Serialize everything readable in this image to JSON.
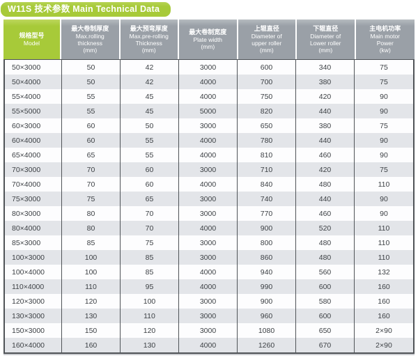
{
  "colors": {
    "accent_green": "#a7ca39",
    "header_gray": "#9aa0a7",
    "row_alt_gray": "#e3e5e9",
    "row_white": "#fdfdfe",
    "border_dark": "#4f5357",
    "header_text": "#ffffff",
    "cell_text": "#3d4145"
  },
  "chart_data": {
    "type": "table",
    "title": "W11S 技术参数  Main Technical Data",
    "columns": [
      {
        "cn": "规格型号",
        "en": [
          "Model"
        ]
      },
      {
        "cn": "最大卷制厚度",
        "en": [
          "Max.rolling",
          "thickness",
          "(mm)"
        ]
      },
      {
        "cn": "最大预弯厚度",
        "en": [
          "Max.pre-rolling",
          "Thickness",
          "(mm)"
        ]
      },
      {
        "cn": "最大卷制宽度",
        "en": [
          "Plate width",
          "(mm)"
        ]
      },
      {
        "cn": "上辊直径",
        "en": [
          "Diameter of",
          "upper roller",
          "(mm)"
        ]
      },
      {
        "cn": "下辊直径",
        "en": [
          "Diameter of",
          "Lower roller",
          "(mm)"
        ]
      },
      {
        "cn": "主电机功率",
        "en": [
          "Main motor",
          "Power",
          "(kw)"
        ]
      }
    ],
    "rows": [
      [
        "50×3000",
        "50",
        "42",
        "3000",
        "600",
        "340",
        "75"
      ],
      [
        "50×4000",
        "50",
        "42",
        "4000",
        "700",
        "380",
        "75"
      ],
      [
        "55×4000",
        "55",
        "45",
        "4000",
        "750",
        "420",
        "90"
      ],
      [
        "55×5000",
        "55",
        "45",
        "5000",
        "820",
        "440",
        "90"
      ],
      [
        "60×3000",
        "60",
        "50",
        "3000",
        "650",
        "380",
        "75"
      ],
      [
        "60×4000",
        "60",
        "55",
        "4000",
        "780",
        "440",
        "90"
      ],
      [
        "65×4000",
        "65",
        "55",
        "4000",
        "810",
        "460",
        "90"
      ],
      [
        "70×3000",
        "70",
        "60",
        "3000",
        "710",
        "420",
        "75"
      ],
      [
        "70×4000",
        "70",
        "60",
        "4000",
        "840",
        "480",
        "110"
      ],
      [
        "75×3000",
        "75",
        "65",
        "3000",
        "740",
        "440",
        "90"
      ],
      [
        "80×3000",
        "80",
        "70",
        "3000",
        "770",
        "460",
        "90"
      ],
      [
        "80×4000",
        "80",
        "70",
        "4000",
        "900",
        "520",
        "110"
      ],
      [
        "85×3000",
        "85",
        "75",
        "3000",
        "800",
        "480",
        "110"
      ],
      [
        "100×3000",
        "100",
        "85",
        "3000",
        "860",
        "480",
        "110"
      ],
      [
        "100×4000",
        "100",
        "85",
        "4000",
        "940",
        "560",
        "132"
      ],
      [
        "110×4000",
        "110",
        "95",
        "4000",
        "990",
        "600",
        "160"
      ],
      [
        "120×3000",
        "120",
        "100",
        "3000",
        "900",
        "580",
        "160"
      ],
      [
        "130×3000",
        "130",
        "110",
        "3000",
        "960",
        "600",
        "160"
      ],
      [
        "150×3000",
        "150",
        "120",
        "3000",
        "1080",
        "650",
        "2×90"
      ],
      [
        "160×4000",
        "160",
        "130",
        "4000",
        "1260",
        "670",
        "2×90"
      ]
    ]
  }
}
